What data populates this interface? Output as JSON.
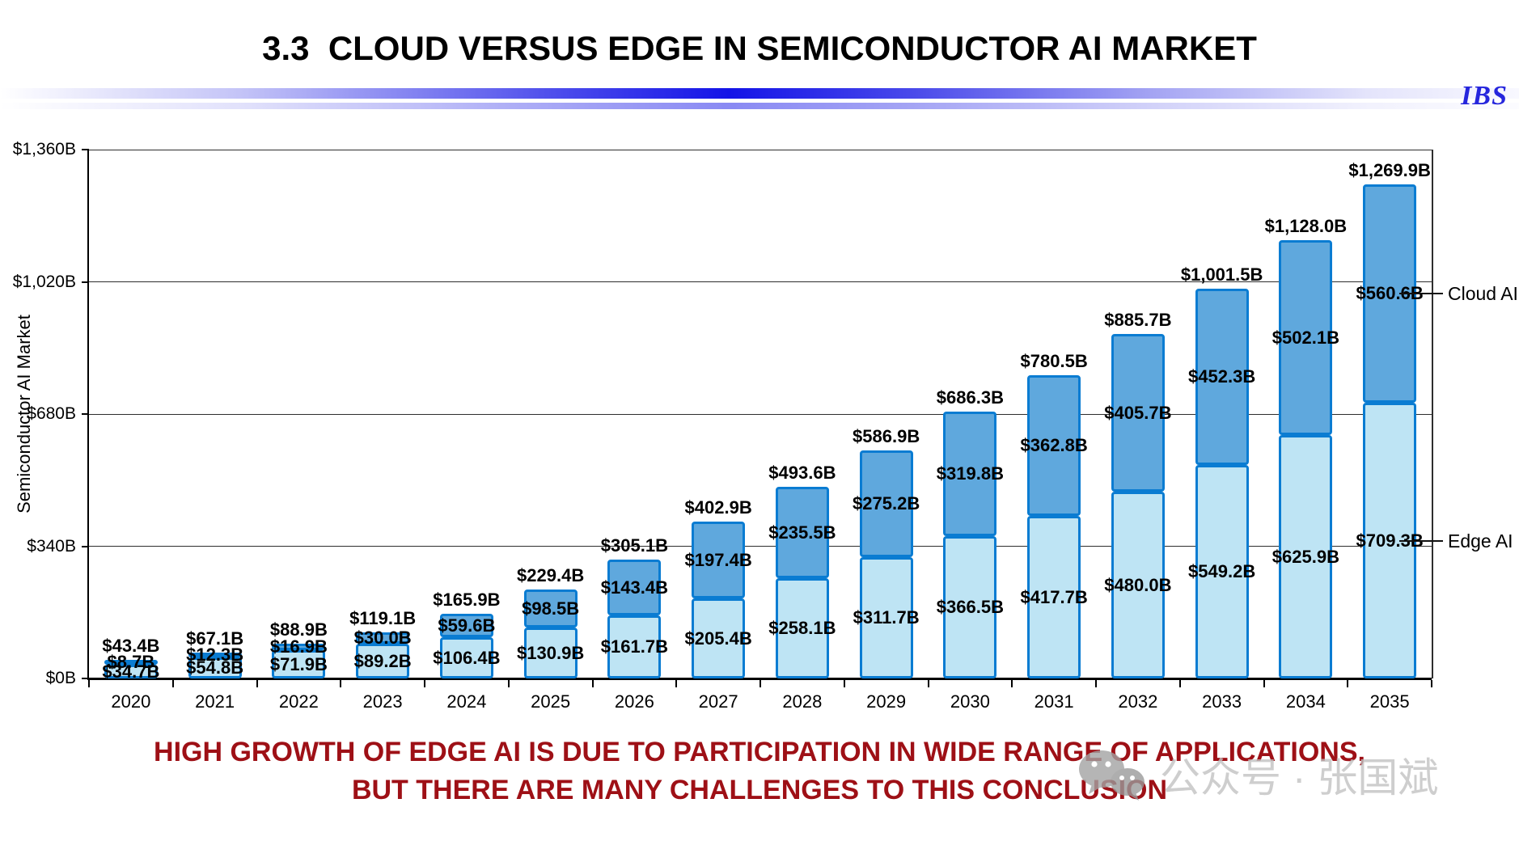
{
  "header": {
    "title": "3.3  CLOUD VERSUS EDGE IN SEMICONDUCTOR AI MARKET",
    "logo": "IBS"
  },
  "chart_data": {
    "type": "bar",
    "stacked": true,
    "ylabel": "Semiconductor AI Market",
    "ylim": [
      0,
      1360
    ],
    "grid": true,
    "y_ticks": [
      {
        "value": 0,
        "label": "$0B"
      },
      {
        "value": 340,
        "label": "$340B"
      },
      {
        "value": 680,
        "label": "$680B"
      },
      {
        "value": 1020,
        "label": "$1,020B"
      },
      {
        "value": 1360,
        "label": "$1,360B"
      }
    ],
    "categories": [
      "2020",
      "2021",
      "2022",
      "2023",
      "2024",
      "2025",
      "2026",
      "2027",
      "2028",
      "2029",
      "2030",
      "2031",
      "2032",
      "2033",
      "2034",
      "2035"
    ],
    "series": [
      {
        "name": "Edge AI",
        "color": "#bee4f4",
        "values": [
          34.7,
          54.8,
          71.9,
          89.2,
          106.4,
          130.9,
          161.7,
          205.4,
          258.1,
          311.7,
          366.5,
          417.7,
          480.0,
          549.2,
          625.9,
          709.3
        ],
        "labels": [
          "$34.7B",
          "$54.8B",
          "$71.9B",
          "$89.2B",
          "$106.4B",
          "$130.9B",
          "$161.7B",
          "$205.4B",
          "$258.1B",
          "$311.7B",
          "$366.5B",
          "$417.7B",
          "$480.0B",
          "$549.2B",
          "$625.9B",
          "$709.3B"
        ]
      },
      {
        "name": "Cloud AI",
        "color": "#5fa8dd",
        "values": [
          8.7,
          12.3,
          16.9,
          30.0,
          59.6,
          98.5,
          143.4,
          197.4,
          235.5,
          275.2,
          319.8,
          362.8,
          405.7,
          452.3,
          502.1,
          560.6
        ],
        "labels": [
          "$8.7B",
          "$12.3B",
          "$16.9B",
          "$30.0B",
          "$59.6B",
          "$98.5B",
          "$143.4B",
          "$197.4B",
          "$235.5B",
          "$275.2B",
          "$319.8B",
          "$362.8B",
          "$405.7B",
          "$452.3B",
          "$502.1B",
          "$560.6B"
        ]
      }
    ],
    "totals": {
      "values": [
        43.4,
        67.1,
        88.9,
        119.1,
        165.9,
        229.4,
        305.1,
        402.9,
        493.6,
        586.9,
        686.3,
        780.5,
        885.7,
        1001.5,
        1128.0,
        1269.9
      ],
      "labels": [
        "$43.4B",
        "$67.1B",
        "$88.9B",
        "$119.1B",
        "$165.9B",
        "$229.4B",
        "$305.1B",
        "$402.9B",
        "$493.6B",
        "$586.9B",
        "$686.3B",
        "$780.5B",
        "$885.7B",
        "$1,001.5B",
        "$1,128.0B",
        "$1,269.9B"
      ]
    },
    "bar_border_color": "#0a7cd2",
    "legend_position": "right-callouts",
    "callouts": [
      {
        "label": "Cloud AI",
        "series": "Cloud AI",
        "category": "2035"
      },
      {
        "label": "Edge AI",
        "series": "Edge AI",
        "category": "2035"
      }
    ]
  },
  "footer": {
    "line1": "HIGH GROWTH OF EDGE AI IS DUE TO PARTICIPATION IN WIDE RANGE OF APPLICATIONS,",
    "line2": "BUT THERE ARE MANY CHALLENGES TO THIS CONCLUSION"
  },
  "watermark": {
    "text": "公众号 · 张国斌"
  }
}
